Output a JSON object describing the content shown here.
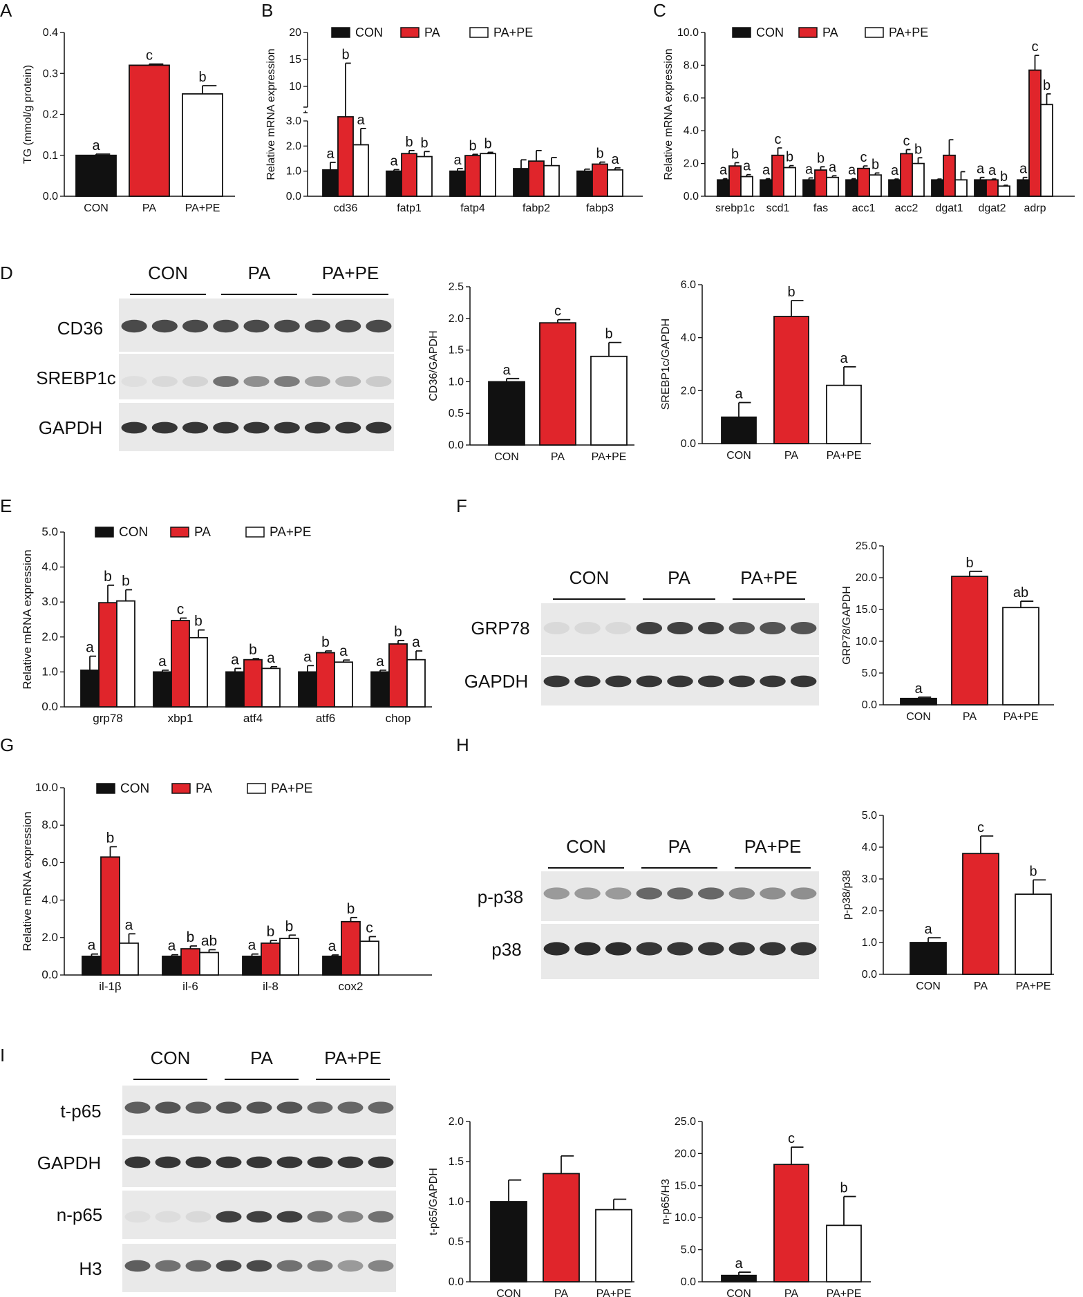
{
  "colors": {
    "CON": "#111111",
    "PA": "#e0252b",
    "PA+PE": "#ffffff",
    "outline": "#111111"
  },
  "groups": [
    "CON",
    "PA",
    "PA+PE"
  ],
  "panels": [
    {
      "id": "A",
      "letter": "A",
      "ylabel": "TG (mmol/g protein)"
    },
    {
      "id": "B",
      "letter": "B",
      "ylabel": "Relative  mRNA expression"
    },
    {
      "id": "C",
      "letter": "C",
      "ylabel": "Relative  mRNA expression"
    },
    {
      "id": "D",
      "letter": "D",
      "blot_rows": [
        "CD36",
        "SREBP1c",
        "GAPDH"
      ]
    },
    {
      "id": "E",
      "letter": "E",
      "ylabel": "Relative  mRNA expression"
    },
    {
      "id": "F",
      "letter": "F",
      "blot_rows": [
        "GRP78",
        "GAPDH"
      ]
    },
    {
      "id": "G",
      "letter": "G",
      "ylabel": "Relative  mRNA expression"
    },
    {
      "id": "H",
      "letter": "H",
      "blot_rows": [
        "p-p38",
        "p38"
      ]
    },
    {
      "id": "I",
      "letter": "I",
      "blot_rows": [
        "t-p65",
        "GAPDH",
        "n-p65",
        "H3"
      ]
    }
  ],
  "chart_data": [
    {
      "id": "A",
      "type": "bar",
      "categories": [
        "CON",
        "PA",
        "PA+PE"
      ],
      "values": [
        0.1,
        0.32,
        0.25
      ],
      "errors": [
        0.003,
        0.003,
        0.02
      ],
      "letters": [
        "a",
        "c",
        "b"
      ],
      "ylabel": "TG (mmol/g protein)",
      "ylim": [
        0,
        0.4
      ],
      "yticks": [
        "0.0",
        "0.1",
        "0.2",
        "0.3",
        "0.4"
      ]
    },
    {
      "id": "B",
      "type": "bar",
      "categories": [
        "cd36",
        "fatp1",
        "fatp4",
        "fabp2",
        "fabp3"
      ],
      "series": [
        {
          "name": "CON",
          "values": [
            1.05,
            1.0,
            1.0,
            1.1,
            1.0
          ],
          "errors": [
            0.3,
            0.06,
            0.1,
            0.35,
            0.08
          ],
          "letters": [
            "a",
            "a",
            "a",
            "",
            ""
          ]
        },
        {
          "name": "PA",
          "values": [
            9.3,
            1.7,
            1.62,
            1.4,
            1.28
          ],
          "errors": [
            5.0,
            0.12,
            0.05,
            0.42,
            0.08
          ],
          "letters": [
            "b",
            "b",
            "b",
            "",
            "b"
          ]
        },
        {
          "name": "PA+PE",
          "values": [
            2.05,
            1.58,
            1.7,
            1.22,
            1.05
          ],
          "errors": [
            0.65,
            0.2,
            0.05,
            0.32,
            0.08
          ],
          "letters": [
            "a",
            "b",
            "b",
            "",
            "a"
          ]
        }
      ],
      "ylabel": "Relative  mRNA expression",
      "ylim": [
        0,
        20
      ],
      "axis_break": [
        3,
        10
      ],
      "yticks": [
        "0.0",
        "1.0",
        "2.0",
        "3.0",
        "10",
        "15",
        "20"
      ],
      "legend": "top"
    },
    {
      "id": "C",
      "type": "bar",
      "categories": [
        "srebp1c",
        "scd1",
        "fas",
        "acc1",
        "acc2",
        "dgat1",
        "dgat2",
        "adrp"
      ],
      "series": [
        {
          "name": "CON",
          "values": [
            1.0,
            1.0,
            1.0,
            1.0,
            1.0,
            1.0,
            1.0,
            1.0
          ],
          "errors": [
            0.07,
            0.07,
            0.12,
            0.07,
            0.05,
            0.05,
            0.15,
            0.15
          ],
          "letters": [
            "a",
            "a",
            "a",
            "a",
            "a",
            "",
            "a",
            "a"
          ]
        },
        {
          "name": "PA",
          "values": [
            1.85,
            2.5,
            1.6,
            1.7,
            2.6,
            2.5,
            1.0,
            7.7
          ],
          "errors": [
            0.2,
            0.45,
            0.2,
            0.15,
            0.25,
            0.95,
            0.05,
            0.9
          ],
          "letters": [
            "b",
            "c",
            "b",
            "c",
            "c",
            "",
            "a",
            "c"
          ]
        },
        {
          "name": "PA+PE",
          "values": [
            1.2,
            1.75,
            1.15,
            1.3,
            2.0,
            1.0,
            0.62,
            5.6
          ],
          "errors": [
            0.12,
            0.12,
            0.1,
            0.12,
            0.35,
            0.5,
            0.05,
            0.65
          ],
          "letters": [
            "a",
            "b",
            "a",
            "b",
            "b",
            "",
            "b",
            "b"
          ]
        }
      ],
      "ylabel": "Relative  mRNA expression",
      "ylim": [
        0,
        10
      ],
      "yticks": [
        "0.0",
        "2.0",
        "4.0",
        "6.0",
        "8.0",
        "10.0"
      ],
      "legend": "top"
    },
    {
      "id": "D1",
      "type": "bar",
      "categories": [
        "CON",
        "PA",
        "PA+PE"
      ],
      "values": [
        1.0,
        1.93,
        1.4
      ],
      "errors": [
        0.05,
        0.05,
        0.22
      ],
      "letters": [
        "a",
        "c",
        "b"
      ],
      "ylabel": "CD36/GAPDH",
      "ylim": [
        0,
        2.5
      ],
      "yticks": [
        "0.0",
        "0.5",
        "1.0",
        "1.5",
        "2.0",
        "2.5"
      ]
    },
    {
      "id": "D2",
      "type": "bar",
      "categories": [
        "CON",
        "PA",
        "PA+PE"
      ],
      "values": [
        1.0,
        4.8,
        2.2
      ],
      "errors": [
        0.55,
        0.6,
        0.7
      ],
      "letters": [
        "a",
        "b",
        "a"
      ],
      "ylabel": "SREBP1c/GAPDH",
      "ylim": [
        0,
        6
      ],
      "yticks": [
        "0.0",
        "2.0",
        "4.0",
        "6.0"
      ]
    },
    {
      "id": "E",
      "type": "bar",
      "categories": [
        "grp78",
        "xbp1",
        "atf4",
        "atf6",
        "chop"
      ],
      "series": [
        {
          "name": "CON",
          "values": [
            1.05,
            1.0,
            1.0,
            1.0,
            1.0
          ],
          "errors": [
            0.4,
            0.05,
            0.1,
            0.18,
            0.05
          ],
          "letters": [
            "a",
            "a",
            "a",
            "a",
            "a"
          ]
        },
        {
          "name": "PA",
          "values": [
            2.98,
            2.47,
            1.35,
            1.55,
            1.8
          ],
          "errors": [
            0.5,
            0.07,
            0.03,
            0.05,
            0.1
          ],
          "letters": [
            "b",
            "c",
            "b",
            "b",
            "b"
          ]
        },
        {
          "name": "PA+PE",
          "values": [
            3.03,
            1.98,
            1.1,
            1.28,
            1.35
          ],
          "errors": [
            0.32,
            0.22,
            0.05,
            0.06,
            0.25
          ],
          "letters": [
            "b",
            "b",
            "a",
            "a",
            "a"
          ]
        }
      ],
      "ylabel": "Relative  mRNA expression",
      "ylim": [
        0,
        5
      ],
      "yticks": [
        "0.0",
        "1.0",
        "2.0",
        "3.0",
        "4.0",
        "5.0"
      ],
      "legend": "top"
    },
    {
      "id": "F1",
      "type": "bar",
      "categories": [
        "CON",
        "PA",
        "PA+PE"
      ],
      "values": [
        1.0,
        20.2,
        15.3
      ],
      "errors": [
        0.2,
        0.8,
        1.0
      ],
      "letters": [
        "a",
        "b",
        "ab"
      ],
      "ylabel": "GRP78/GAPDH",
      "ylim": [
        0,
        25
      ],
      "yticks": [
        "0.0",
        "5.0",
        "10.0",
        "15.0",
        "20.0",
        "25.0"
      ]
    },
    {
      "id": "G",
      "type": "bar",
      "categories": [
        "il-1β",
        "il-6",
        "il-8",
        "cox2"
      ],
      "series": [
        {
          "name": "CON",
          "values": [
            1.0,
            1.0,
            1.0,
            1.0
          ],
          "errors": [
            0.12,
            0.08,
            0.12,
            0.07
          ],
          "letters": [
            "a",
            "a",
            "a",
            "a"
          ]
        },
        {
          "name": "PA",
          "values": [
            6.3,
            1.4,
            1.7,
            2.85
          ],
          "errors": [
            0.55,
            0.15,
            0.15,
            0.22
          ],
          "letters": [
            "b",
            "b",
            "b",
            "b"
          ]
        },
        {
          "name": "PA+PE",
          "values": [
            1.7,
            1.2,
            1.95,
            1.8
          ],
          "errors": [
            0.5,
            0.15,
            0.18,
            0.25
          ],
          "letters": [
            "a",
            "ab",
            "b",
            "c"
          ]
        }
      ],
      "ylabel": "Relative  mRNA expression",
      "ylim": [
        0,
        10
      ],
      "yticks": [
        "0.0",
        "2.0",
        "4.0",
        "6.0",
        "8.0",
        "10.0"
      ],
      "legend": "top"
    },
    {
      "id": "H1",
      "type": "bar",
      "categories": [
        "CON",
        "PA",
        "PA+PE"
      ],
      "values": [
        1.0,
        3.8,
        2.52
      ],
      "errors": [
        0.15,
        0.55,
        0.45
      ],
      "letters": [
        "a",
        "c",
        "b"
      ],
      "ylabel": "p-p38/p38",
      "ylim": [
        0,
        5
      ],
      "yticks": [
        "0.0",
        "1.0",
        "2.0",
        "3.0",
        "4.0",
        "5.0"
      ]
    },
    {
      "id": "I1",
      "type": "bar",
      "categories": [
        "CON",
        "PA",
        "PA+PE"
      ],
      "values": [
        1.0,
        1.35,
        0.9
      ],
      "errors": [
        0.27,
        0.22,
        0.13
      ],
      "letters": [
        "",
        "",
        ""
      ],
      "ylabel": "t-p65/GAPDH",
      "ylim": [
        0,
        2
      ],
      "yticks": [
        "0.0",
        "0.5",
        "1.0",
        "1.5",
        "2.0"
      ]
    },
    {
      "id": "I2",
      "type": "bar",
      "categories": [
        "CON",
        "PA",
        "PA+PE"
      ],
      "values": [
        1.0,
        18.3,
        8.8
      ],
      "errors": [
        0.5,
        2.7,
        4.5
      ],
      "letters": [
        "a",
        "c",
        "b"
      ],
      "ylabel": "n-p65/H3",
      "ylim": [
        0,
        25
      ],
      "yticks": [
        "0.0",
        "5.0",
        "10.0",
        "15.0",
        "20.0",
        "25.0"
      ]
    }
  ]
}
